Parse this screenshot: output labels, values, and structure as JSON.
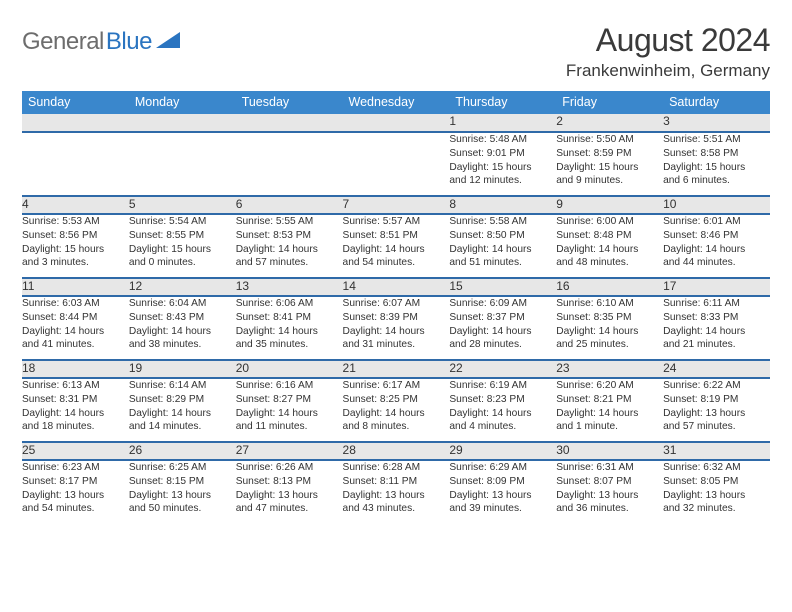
{
  "logo": {
    "word1": "General",
    "word2": "Blue"
  },
  "title": "August 2024",
  "location": "Frankenwinheim, Germany",
  "colors": {
    "header_bg": "#3a87cc",
    "header_text": "#ffffff",
    "row_divider": "#2f6aa8",
    "daynum_bg": "#e7e7e7",
    "body_text": "#333333",
    "logo_gray": "#6d6d6d",
    "logo_blue": "#2a74c0",
    "page_bg": "#ffffff"
  },
  "fonts": {
    "title_size": 32,
    "location_size": 17,
    "dayheader_size": 12.5,
    "cell_size": 10.2
  },
  "day_headers": [
    "Sunday",
    "Monday",
    "Tuesday",
    "Wednesday",
    "Thursday",
    "Friday",
    "Saturday"
  ],
  "weeks": [
    {
      "nums": [
        "",
        "",
        "",
        "",
        "1",
        "2",
        "3"
      ],
      "cells": [
        null,
        null,
        null,
        null,
        {
          "sunrise": "Sunrise: 5:48 AM",
          "sunset": "Sunset: 9:01 PM",
          "day1": "Daylight: 15 hours",
          "day2": "and 12 minutes."
        },
        {
          "sunrise": "Sunrise: 5:50 AM",
          "sunset": "Sunset: 8:59 PM",
          "day1": "Daylight: 15 hours",
          "day2": "and 9 minutes."
        },
        {
          "sunrise": "Sunrise: 5:51 AM",
          "sunset": "Sunset: 8:58 PM",
          "day1": "Daylight: 15 hours",
          "day2": "and 6 minutes."
        }
      ]
    },
    {
      "nums": [
        "4",
        "5",
        "6",
        "7",
        "8",
        "9",
        "10"
      ],
      "cells": [
        {
          "sunrise": "Sunrise: 5:53 AM",
          "sunset": "Sunset: 8:56 PM",
          "day1": "Daylight: 15 hours",
          "day2": "and 3 minutes."
        },
        {
          "sunrise": "Sunrise: 5:54 AM",
          "sunset": "Sunset: 8:55 PM",
          "day1": "Daylight: 15 hours",
          "day2": "and 0 minutes."
        },
        {
          "sunrise": "Sunrise: 5:55 AM",
          "sunset": "Sunset: 8:53 PM",
          "day1": "Daylight: 14 hours",
          "day2": "and 57 minutes."
        },
        {
          "sunrise": "Sunrise: 5:57 AM",
          "sunset": "Sunset: 8:51 PM",
          "day1": "Daylight: 14 hours",
          "day2": "and 54 minutes."
        },
        {
          "sunrise": "Sunrise: 5:58 AM",
          "sunset": "Sunset: 8:50 PM",
          "day1": "Daylight: 14 hours",
          "day2": "and 51 minutes."
        },
        {
          "sunrise": "Sunrise: 6:00 AM",
          "sunset": "Sunset: 8:48 PM",
          "day1": "Daylight: 14 hours",
          "day2": "and 48 minutes."
        },
        {
          "sunrise": "Sunrise: 6:01 AM",
          "sunset": "Sunset: 8:46 PM",
          "day1": "Daylight: 14 hours",
          "day2": "and 44 minutes."
        }
      ]
    },
    {
      "nums": [
        "11",
        "12",
        "13",
        "14",
        "15",
        "16",
        "17"
      ],
      "cells": [
        {
          "sunrise": "Sunrise: 6:03 AM",
          "sunset": "Sunset: 8:44 PM",
          "day1": "Daylight: 14 hours",
          "day2": "and 41 minutes."
        },
        {
          "sunrise": "Sunrise: 6:04 AM",
          "sunset": "Sunset: 8:43 PM",
          "day1": "Daylight: 14 hours",
          "day2": "and 38 minutes."
        },
        {
          "sunrise": "Sunrise: 6:06 AM",
          "sunset": "Sunset: 8:41 PM",
          "day1": "Daylight: 14 hours",
          "day2": "and 35 minutes."
        },
        {
          "sunrise": "Sunrise: 6:07 AM",
          "sunset": "Sunset: 8:39 PM",
          "day1": "Daylight: 14 hours",
          "day2": "and 31 minutes."
        },
        {
          "sunrise": "Sunrise: 6:09 AM",
          "sunset": "Sunset: 8:37 PM",
          "day1": "Daylight: 14 hours",
          "day2": "and 28 minutes."
        },
        {
          "sunrise": "Sunrise: 6:10 AM",
          "sunset": "Sunset: 8:35 PM",
          "day1": "Daylight: 14 hours",
          "day2": "and 25 minutes."
        },
        {
          "sunrise": "Sunrise: 6:11 AM",
          "sunset": "Sunset: 8:33 PM",
          "day1": "Daylight: 14 hours",
          "day2": "and 21 minutes."
        }
      ]
    },
    {
      "nums": [
        "18",
        "19",
        "20",
        "21",
        "22",
        "23",
        "24"
      ],
      "cells": [
        {
          "sunrise": "Sunrise: 6:13 AM",
          "sunset": "Sunset: 8:31 PM",
          "day1": "Daylight: 14 hours",
          "day2": "and 18 minutes."
        },
        {
          "sunrise": "Sunrise: 6:14 AM",
          "sunset": "Sunset: 8:29 PM",
          "day1": "Daylight: 14 hours",
          "day2": "and 14 minutes."
        },
        {
          "sunrise": "Sunrise: 6:16 AM",
          "sunset": "Sunset: 8:27 PM",
          "day1": "Daylight: 14 hours",
          "day2": "and 11 minutes."
        },
        {
          "sunrise": "Sunrise: 6:17 AM",
          "sunset": "Sunset: 8:25 PM",
          "day1": "Daylight: 14 hours",
          "day2": "and 8 minutes."
        },
        {
          "sunrise": "Sunrise: 6:19 AM",
          "sunset": "Sunset: 8:23 PM",
          "day1": "Daylight: 14 hours",
          "day2": "and 4 minutes."
        },
        {
          "sunrise": "Sunrise: 6:20 AM",
          "sunset": "Sunset: 8:21 PM",
          "day1": "Daylight: 14 hours",
          "day2": "and 1 minute."
        },
        {
          "sunrise": "Sunrise: 6:22 AM",
          "sunset": "Sunset: 8:19 PM",
          "day1": "Daylight: 13 hours",
          "day2": "and 57 minutes."
        }
      ]
    },
    {
      "nums": [
        "25",
        "26",
        "27",
        "28",
        "29",
        "30",
        "31"
      ],
      "cells": [
        {
          "sunrise": "Sunrise: 6:23 AM",
          "sunset": "Sunset: 8:17 PM",
          "day1": "Daylight: 13 hours",
          "day2": "and 54 minutes."
        },
        {
          "sunrise": "Sunrise: 6:25 AM",
          "sunset": "Sunset: 8:15 PM",
          "day1": "Daylight: 13 hours",
          "day2": "and 50 minutes."
        },
        {
          "sunrise": "Sunrise: 6:26 AM",
          "sunset": "Sunset: 8:13 PM",
          "day1": "Daylight: 13 hours",
          "day2": "and 47 minutes."
        },
        {
          "sunrise": "Sunrise: 6:28 AM",
          "sunset": "Sunset: 8:11 PM",
          "day1": "Daylight: 13 hours",
          "day2": "and 43 minutes."
        },
        {
          "sunrise": "Sunrise: 6:29 AM",
          "sunset": "Sunset: 8:09 PM",
          "day1": "Daylight: 13 hours",
          "day2": "and 39 minutes."
        },
        {
          "sunrise": "Sunrise: 6:31 AM",
          "sunset": "Sunset: 8:07 PM",
          "day1": "Daylight: 13 hours",
          "day2": "and 36 minutes."
        },
        {
          "sunrise": "Sunrise: 6:32 AM",
          "sunset": "Sunset: 8:05 PM",
          "day1": "Daylight: 13 hours",
          "day2": "and 32 minutes."
        }
      ]
    }
  ]
}
